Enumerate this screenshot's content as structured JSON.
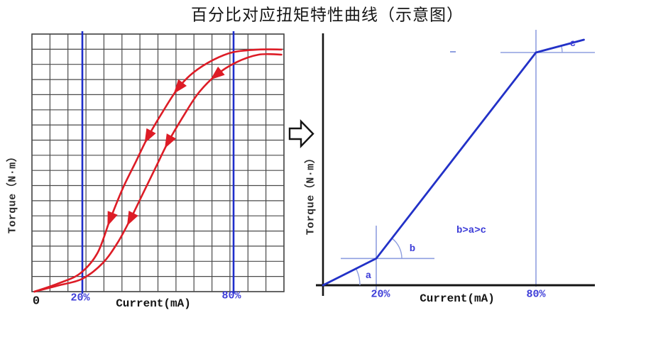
{
  "title": "百分比对应扭矩特性曲线（示意图）",
  "icons": {
    "transform_arrow": "hollow-block-arrow-right"
  },
  "colors": {
    "curve_red": "#dd1c26",
    "main_blue": "#2231c7",
    "marker_blue": "#1f2ecb",
    "guide_blue": "#8f9fe0",
    "label_blue": "#3d3dd8",
    "grid_gray": "#4a4a4a",
    "axis_black": "#141414"
  },
  "chart_data": [
    {
      "type": "line",
      "name": "measured-hysteresis-curve",
      "xlabel": "Current(mA)",
      "ylabel": "Torque（N·m）",
      "origin_label": "0",
      "x_markers": [
        {
          "label": "20%",
          "pct": 20
        },
        {
          "label": "80%",
          "pct": 80
        }
      ],
      "grid": {
        "on": true,
        "cols": 14,
        "rows": 17
      },
      "xlim": [
        0,
        100
      ],
      "ylim": [
        0,
        100
      ],
      "series": [
        {
          "name": "upper-decreasing-branch",
          "points": [
            [
              1,
              0
            ],
            [
              10,
              3
            ],
            [
              19,
              7
            ],
            [
              26,
              15
            ],
            [
              31,
              28
            ],
            [
              36,
              40
            ],
            [
              41,
              50
            ],
            [
              46,
              60
            ],
            [
              52,
              70
            ],
            [
              58,
              79
            ],
            [
              64,
              85
            ],
            [
              72,
              90
            ],
            [
              80,
              93
            ],
            [
              90,
              94
            ],
            [
              99,
              94
            ]
          ],
          "arrow_indices": [
            4,
            7,
            9
          ]
        },
        {
          "name": "lower-increasing-branch",
          "points": [
            [
              1,
              0
            ],
            [
              11,
              2.5
            ],
            [
              20,
              5
            ],
            [
              28,
              11
            ],
            [
              34,
              19
            ],
            [
              39,
              28
            ],
            [
              44,
              38
            ],
            [
              49,
              48
            ],
            [
              54,
              58
            ],
            [
              60,
              68
            ],
            [
              66,
              77
            ],
            [
              73,
              84
            ],
            [
              81,
              89
            ],
            [
              90,
              92
            ],
            [
              99,
              92
            ]
          ],
          "arrow_indices": [
            5,
            8,
            11
          ]
        }
      ],
      "arrow_direction": "down-left"
    },
    {
      "type": "line",
      "name": "idealized-piecewise-curve",
      "xlabel": "Current(mA)",
      "ylabel": "Torque（N·m）",
      "x_markers": [
        {
          "label": "20%",
          "pct": 20
        },
        {
          "label": "80%",
          "pct": 80
        }
      ],
      "grid": {
        "on": false
      },
      "xlim": [
        0,
        105
      ],
      "ylim": [
        0,
        110
      ],
      "line_x": [
        0,
        20,
        80,
        98
      ],
      "line_y": [
        0,
        11.5,
        100,
        105.5
      ],
      "angle_labels": [
        "a",
        "b",
        "c"
      ],
      "annotation": "b>a>c",
      "legend": null
    }
  ]
}
